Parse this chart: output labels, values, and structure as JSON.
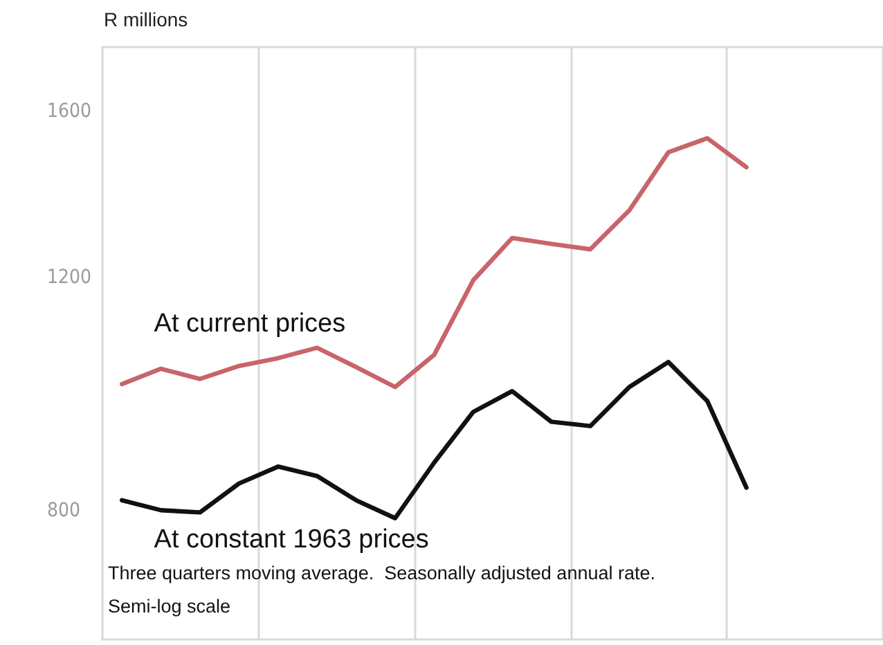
{
  "chart_data": {
    "type": "line",
    "ylabel": "R millions",
    "log": true,
    "grid": "x",
    "legend": false,
    "marker": "none",
    "line_style": "solid",
    "tick_labels": "y",
    "categories": [
      null,
      null,
      null,
      null,
      null,
      null,
      null,
      null,
      null,
      null,
      null,
      null,
      null,
      null,
      null,
      null,
      null,
      null,
      null,
      null
    ],
    "ylim": [
      640,
      1790
    ],
    "yticks": [
      800,
      1200,
      1600
    ],
    "series": [
      {
        "name": "At current prices",
        "color": "#c8646a",
        "values": [
          997,
          1024,
          1006,
          1029,
          1043,
          1062,
          1027,
          992,
          1049,
          1194,
          1285,
          1272,
          1260,
          1348,
          1491,
          1528,
          1453,
          null,
          null,
          null
        ]
      },
      {
        "name": "At constant 1963 prices",
        "color": "#111111",
        "values": [
          815,
          801,
          798,
          839,
          864,
          850,
          815,
          790,
          870,
          950,
          985,
          934,
          927,
          992,
          1036,
          968,
          833,
          null,
          null,
          null
        ]
      }
    ],
    "annotations": [
      "Three quarters moving average.  Seasonally adjusted annual rate.",
      "Semi-log scale"
    ]
  }
}
